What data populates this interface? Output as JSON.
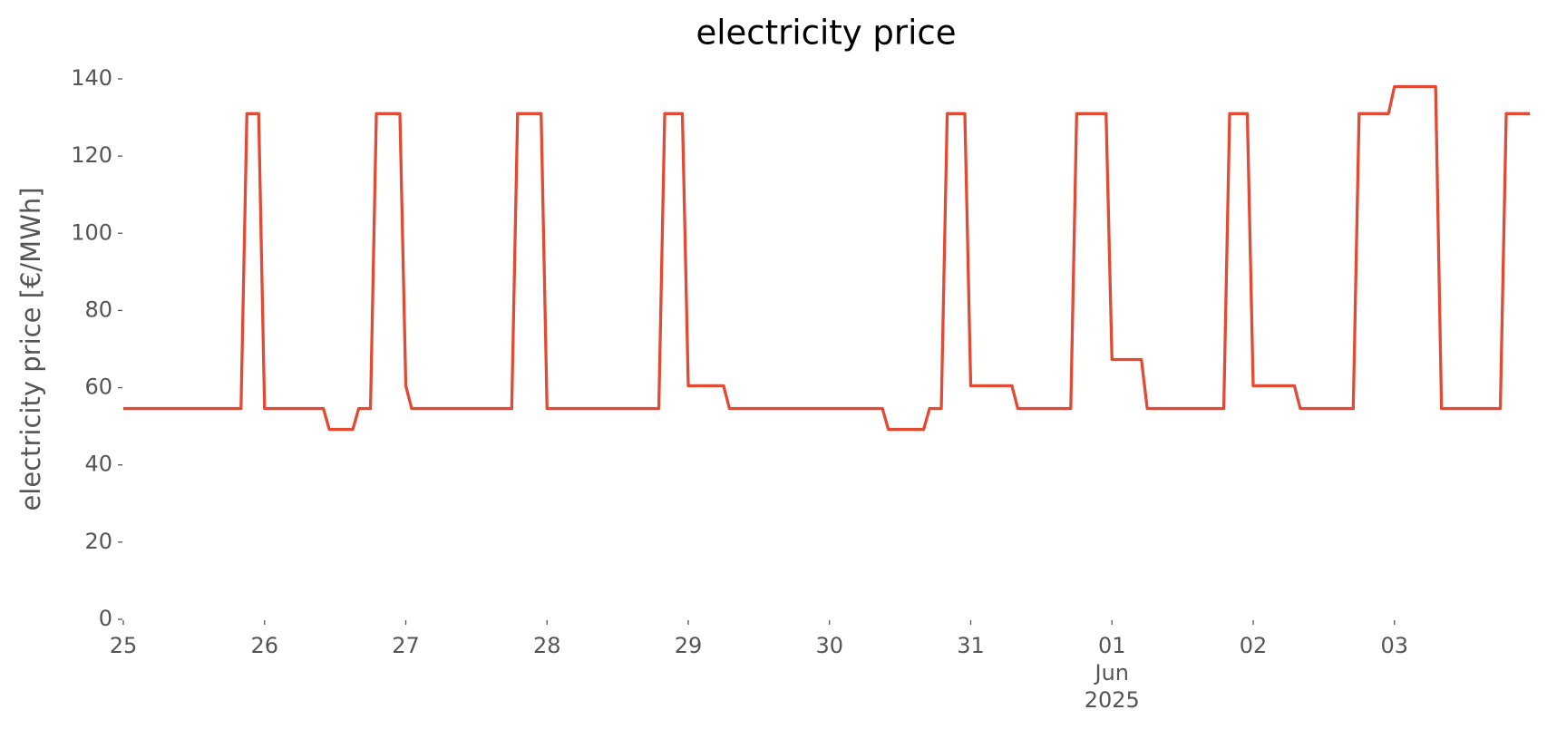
{
  "chart_data": {
    "type": "line",
    "title": "electricity price",
    "y_label": "electricity price [€/MWh]",
    "x": [
      "2025-05-25 00:00",
      "2025-05-25 20:00",
      "2025-05-25 21:00",
      "2025-05-25 23:00",
      "2025-05-26 00:00",
      "2025-05-26 10:00",
      "2025-05-26 11:00",
      "2025-05-26 15:00",
      "2025-05-26 16:00",
      "2025-05-26 18:00",
      "2025-05-26 19:00",
      "2025-05-26 23:00",
      "2025-05-27 00:00",
      "2025-05-27 01:00",
      "2025-05-27 18:00",
      "2025-05-27 19:00",
      "2025-05-27 23:00",
      "2025-05-28 00:00",
      "2025-05-28 19:00",
      "2025-05-28 20:00",
      "2025-05-28 23:00",
      "2025-05-29 00:00",
      "2025-05-29 06:00",
      "2025-05-29 07:00",
      "2025-05-30 09:00",
      "2025-05-30 10:00",
      "2025-05-30 16:00",
      "2025-05-30 17:00",
      "2025-05-30 19:00",
      "2025-05-30 20:00",
      "2025-05-30 23:00",
      "2025-05-31 00:00",
      "2025-05-31 07:00",
      "2025-05-31 08:00",
      "2025-05-31 17:00",
      "2025-05-31 18:00",
      "2025-05-31 23:00",
      "2025-06-01 00:00",
      "2025-06-01 05:00",
      "2025-06-01 06:00",
      "2025-06-01 19:00",
      "2025-06-01 20:00",
      "2025-06-01 23:00",
      "2025-06-02 00:00",
      "2025-06-02 07:00",
      "2025-06-02 08:00",
      "2025-06-02 17:00",
      "2025-06-02 18:00",
      "2025-06-02 23:00",
      "2025-06-03 00:00",
      "2025-06-03 07:00",
      "2025-06-03 08:00",
      "2025-06-03 18:00",
      "2025-06-03 19:00",
      "2025-06-03 23:00"
    ],
    "series": [
      {
        "name": "electricity price",
        "color": "#e24a33",
        "values": [
          54.6,
          54.6,
          131,
          131,
          54.6,
          54.6,
          49.2,
          49.2,
          54.6,
          54.6,
          131,
          131,
          60.5,
          54.6,
          54.6,
          131,
          131,
          54.6,
          54.6,
          131,
          131,
          60.5,
          60.5,
          54.6,
          54.6,
          49.2,
          49.2,
          54.6,
          54.6,
          131,
          131,
          60.5,
          60.5,
          54.6,
          54.6,
          131,
          131,
          67.3,
          67.3,
          54.6,
          54.6,
          131,
          131,
          60.5,
          60.5,
          54.6,
          54.6,
          131,
          131,
          138,
          138,
          54.6,
          54.6,
          131,
          131
        ]
      }
    ],
    "xlim": [
      "2025-05-25 00:00",
      "2025-06-03 23:00"
    ],
    "xticks": [
      {
        "value": "2025-05-25 00:00",
        "label": "25"
      },
      {
        "value": "2025-05-26 00:00",
        "label": "26"
      },
      {
        "value": "2025-05-27 00:00",
        "label": "27"
      },
      {
        "value": "2025-05-28 00:00",
        "label": "28"
      },
      {
        "value": "2025-05-29 00:00",
        "label": "29"
      },
      {
        "value": "2025-05-30 00:00",
        "label": "30"
      },
      {
        "value": "2025-05-31 00:00",
        "label": "31"
      },
      {
        "value": "2025-06-01 00:00",
        "label": "01\nJun\n2025"
      },
      {
        "value": "2025-06-02 00:00",
        "label": "02"
      },
      {
        "value": "2025-06-03 00:00",
        "label": "03"
      }
    ],
    "ylim": [
      0,
      140
    ],
    "yticks": [
      0,
      20,
      40,
      60,
      80,
      100,
      120,
      140
    ],
    "grid": false
  }
}
